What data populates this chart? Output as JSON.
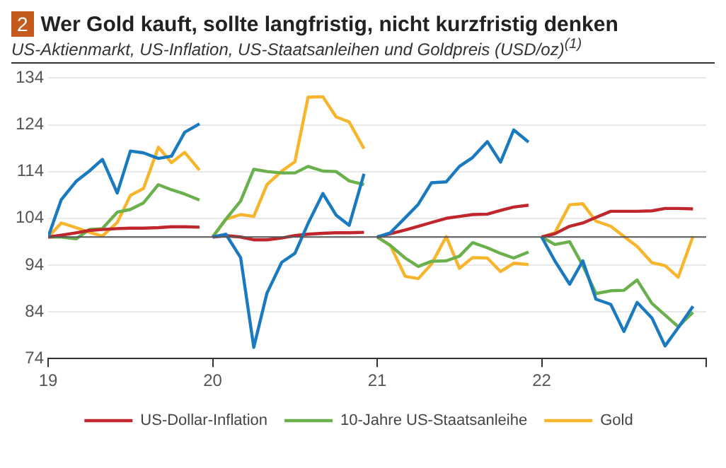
{
  "chart_data": {
    "type": "line",
    "title": "Wer Gold kauft, sollte langfristig, nicht kurzfristig denken",
    "subtitle": "US-Aktienmarkt, US-Inflation, US-Staatsanleihen und Goldpreis (USD/oz)$^{(1)}$",
    "annotations": [
      "2"
    ],
    "x": [
      19,
      19.08,
      19.17,
      19.25,
      19.33,
      19.42,
      19.5,
      19.58,
      19.67,
      19.75,
      19.83,
      19.92,
      19.96,
      20,
      20.08,
      20.17,
      20.25,
      20.33,
      20.42,
      20.5,
      20.58,
      20.67,
      20.75,
      20.83,
      20.92,
      20.96,
      21,
      21.08,
      21.17,
      21.25,
      21.33,
      21.42,
      21.5,
      21.58,
      21.67,
      21.75,
      21.83,
      21.92,
      21.96,
      22,
      22.08,
      22.17,
      22.25,
      22.33,
      22.42,
      22.5,
      22.58,
      22.67,
      22.75,
      22.83,
      22.92
    ],
    "series": [
      {
        "color": "#1a7ac0",
        "values": [
          100,
          108.0,
          111.9,
          114.1,
          116.6,
          109.4,
          118.4,
          118.0,
          116.8,
          117.3,
          122.4,
          124.2,
          null,
          100,
          100.6,
          95.6,
          76.4,
          88.0,
          94.6,
          96.5,
          102.9,
          109.3,
          104.7,
          102.5,
          113.5,
          null,
          100,
          100.9,
          104.1,
          107.0,
          111.6,
          111.8,
          115.1,
          117.0,
          120.4,
          116.0,
          122.9,
          120.3,
          null,
          100,
          94.9,
          89.9,
          94.9,
          86.7,
          85.6,
          79.8,
          86.0,
          82.7,
          76.7,
          80.6,
          85.2
        ]
      },
      {
        "name": "US-Dollar-Inflation",
        "color": "#c0272d",
        "values": [
          100,
          100.4,
          100.9,
          101.4,
          101.6,
          101.8,
          101.9,
          101.9,
          102.0,
          102.2,
          102.2,
          102.1,
          null,
          100,
          100.3,
          100.0,
          99.4,
          99.4,
          99.8,
          100.3,
          100.6,
          100.8,
          100.9,
          100.9,
          101.0,
          null,
          100,
          100.7,
          101.5,
          102.3,
          103.1,
          104.0,
          104.4,
          104.8,
          104.9,
          105.7,
          106.4,
          106.8,
          null,
          100,
          100.7,
          102.3,
          103.0,
          104.2,
          105.5,
          105.5,
          105.5,
          105.6,
          106.1,
          106.1,
          106.0
        ]
      },
      {
        "name": "10-Jahre US-Staatsanleihe",
        "color": "#6ab04c",
        "values": [
          100,
          100,
          99.6,
          101.6,
          101.8,
          105.3,
          105.9,
          107.3,
          111.2,
          110.1,
          109.2,
          107.9,
          null,
          100,
          103.8,
          107.7,
          114.5,
          114.0,
          113.7,
          113.7,
          115.1,
          114.1,
          114.0,
          112.0,
          111.2,
          null,
          100,
          98.2,
          95.5,
          93.7,
          94.8,
          94.9,
          95.9,
          98.8,
          97.7,
          96.5,
          95.5,
          96.8,
          null,
          100,
          98.4,
          99.0,
          93.9,
          87.9,
          88.5,
          88.6,
          90.8,
          85.8,
          83.3,
          80.8,
          83.9
        ]
      },
      {
        "name": "Gold",
        "color": "#f7b52c",
        "values": [
          100,
          103.0,
          102.0,
          101.0,
          100.2,
          103.1,
          108.9,
          110.4,
          119.2,
          115.9,
          118.1,
          114.3,
          null,
          100,
          103.8,
          104.8,
          104.4,
          111.2,
          114.1,
          116.1,
          129.9,
          130.0,
          125.7,
          124.6,
          118.9,
          null,
          100,
          98.2,
          91.6,
          91.1,
          94.2,
          100.1,
          93.3,
          95.6,
          95.5,
          92.6,
          94.4,
          94.1,
          null,
          100,
          100.9,
          106.9,
          107.1,
          103.4,
          102.3,
          100.1,
          98.0,
          94.5,
          93.9,
          91.4,
          100.2
        ]
      }
    ],
    "xlim": [
      19,
      23
    ],
    "xticks": [
      19,
      20,
      21,
      22,
      {
        "value": 23,
        "label": null
      }
    ],
    "ylim": [
      74,
      134
    ],
    "yticks": [
      74,
      84,
      94,
      104,
      114,
      124,
      134
    ],
    "ref_lines": [
      {
        "axis": "y",
        "value": 100,
        "color": "#555555"
      }
    ],
    "grid": "y",
    "legend": "bottom",
    "marker": "none",
    "line_style": "solid"
  }
}
